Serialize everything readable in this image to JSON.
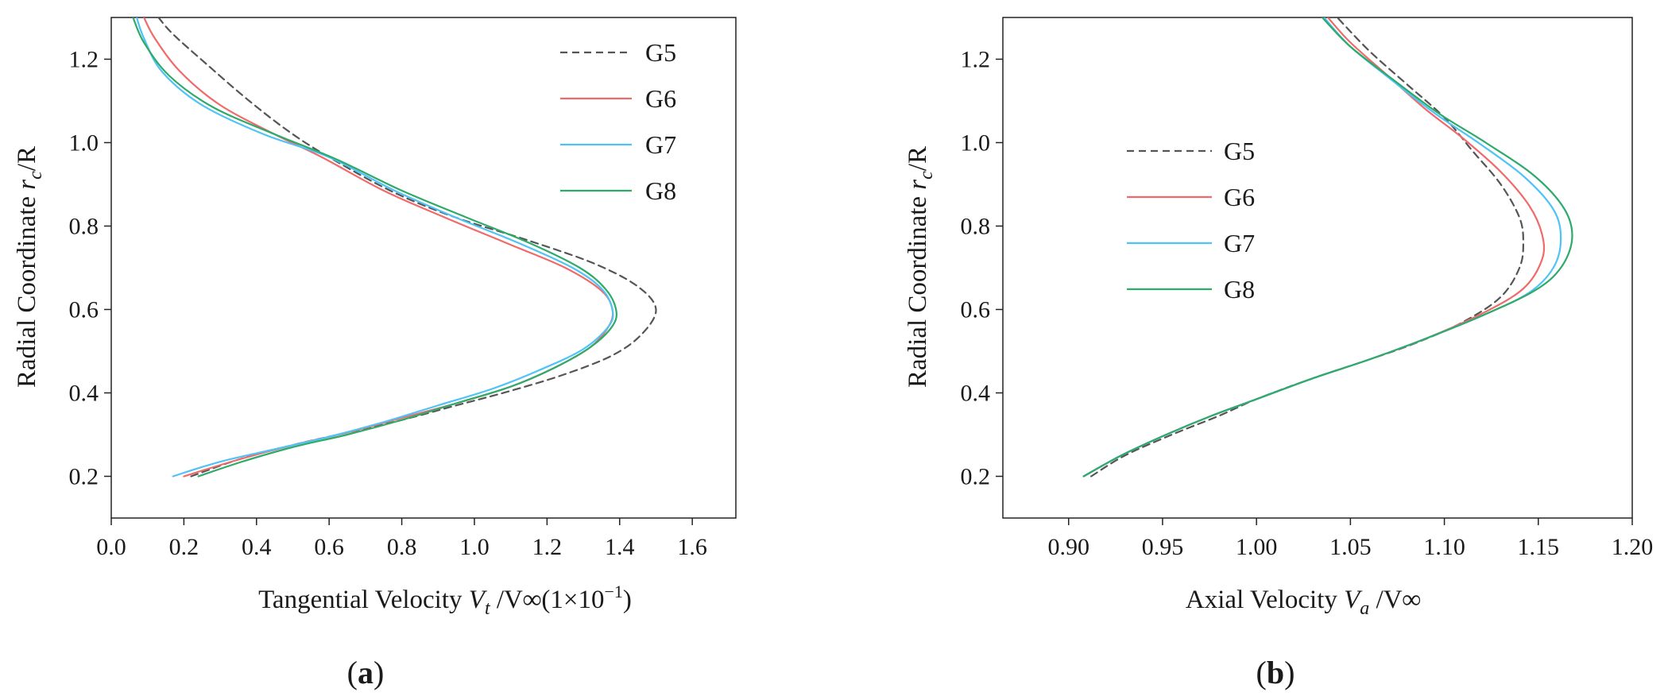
{
  "figure": {
    "panel_labels": [
      "(a)",
      "(b)"
    ]
  },
  "chart_data": [
    {
      "type": "line",
      "panel": "(a)",
      "xlabel": "Tangential Velocity V_t /V_∞(1×10⁻¹)",
      "xlabel_parts": {
        "prefix": "Tangential Velocity ",
        "v": "V",
        "sub": "t",
        "mid": " /V",
        "inf": "∞",
        "suffix": "(1×10",
        "sup": "−1",
        "close": ")"
      },
      "ylabel": "Radial Coordinate r_c/R",
      "ylabel_parts": {
        "prefix": "Radial Coordinate ",
        "r": "r",
        "sub": "c",
        "suffix": "/R"
      },
      "xlim": [
        0.0,
        1.72
      ],
      "ylim": [
        0.1,
        1.3
      ],
      "xticks": [
        0.0,
        0.2,
        0.4,
        0.6,
        0.8,
        1.0,
        1.2,
        1.4,
        1.6
      ],
      "xtick_labels": [
        "0.0",
        "0.2",
        "0.4",
        "0.6",
        "0.8",
        "1.0",
        "1.2",
        "1.4",
        "1.6"
      ],
      "yticks": [
        0.2,
        0.4,
        0.6,
        0.8,
        1.0,
        1.2
      ],
      "ytick_labels": [
        "0.2",
        "0.4",
        "0.6",
        "0.8",
        "1.0",
        "1.2"
      ],
      "legend_position": "top-right",
      "series": [
        {
          "name": "G5",
          "color": "#555555",
          "dash": "dashed",
          "points": [
            [
              0.22,
              0.2
            ],
            [
              0.35,
              0.24
            ],
            [
              0.5,
              0.275
            ],
            [
              0.65,
              0.305
            ],
            [
              0.8,
              0.335
            ],
            [
              0.95,
              0.37
            ],
            [
              1.1,
              0.405
            ],
            [
              1.25,
              0.445
            ],
            [
              1.38,
              0.49
            ],
            [
              1.46,
              0.54
            ],
            [
              1.5,
              0.6
            ],
            [
              1.45,
              0.655
            ],
            [
              1.33,
              0.71
            ],
            [
              1.15,
              0.765
            ],
            [
              0.95,
              0.82
            ],
            [
              0.78,
              0.88
            ],
            [
              0.62,
              0.955
            ],
            [
              0.5,
              1.02
            ],
            [
              0.38,
              1.1
            ],
            [
              0.26,
              1.19
            ],
            [
              0.17,
              1.26
            ],
            [
              0.13,
              1.3
            ]
          ]
        },
        {
          "name": "G6",
          "color": "#f06a6a",
          "dash": "solid",
          "points": [
            [
              0.2,
              0.2
            ],
            [
              0.35,
              0.24
            ],
            [
              0.5,
              0.275
            ],
            [
              0.65,
              0.305
            ],
            [
              0.8,
              0.34
            ],
            [
              0.95,
              0.375
            ],
            [
              1.1,
              0.415
            ],
            [
              1.22,
              0.46
            ],
            [
              1.32,
              0.51
            ],
            [
              1.37,
              0.56
            ],
            [
              1.38,
              0.6
            ],
            [
              1.35,
              0.645
            ],
            [
              1.25,
              0.7
            ],
            [
              1.1,
              0.755
            ],
            [
              0.92,
              0.82
            ],
            [
              0.75,
              0.885
            ],
            [
              0.58,
              0.965
            ],
            [
              0.45,
              1.02
            ],
            [
              0.3,
              1.09
            ],
            [
              0.19,
              1.17
            ],
            [
              0.12,
              1.25
            ],
            [
              0.09,
              1.3
            ]
          ]
        },
        {
          "name": "G7",
          "color": "#4fc3f7",
          "dash": "solid",
          "points": [
            [
              0.17,
              0.2
            ],
            [
              0.3,
              0.235
            ],
            [
              0.45,
              0.265
            ],
            [
              0.6,
              0.295
            ],
            [
              0.75,
              0.33
            ],
            [
              0.9,
              0.37
            ],
            [
              1.05,
              0.41
            ],
            [
              1.18,
              0.455
            ],
            [
              1.3,
              0.505
            ],
            [
              1.37,
              0.56
            ],
            [
              1.38,
              0.6
            ],
            [
              1.35,
              0.65
            ],
            [
              1.27,
              0.7
            ],
            [
              1.12,
              0.76
            ],
            [
              0.95,
              0.82
            ],
            [
              0.78,
              0.885
            ],
            [
              0.6,
              0.965
            ],
            [
              0.42,
              1.02
            ],
            [
              0.25,
              1.09
            ],
            [
              0.14,
              1.17
            ],
            [
              0.09,
              1.25
            ],
            [
              0.07,
              1.3
            ]
          ]
        },
        {
          "name": "G8",
          "color": "#2eaa6a",
          "dash": "solid",
          "points": [
            [
              0.24,
              0.2
            ],
            [
              0.36,
              0.235
            ],
            [
              0.5,
              0.27
            ],
            [
              0.65,
              0.3
            ],
            [
              0.8,
              0.335
            ],
            [
              0.95,
              0.375
            ],
            [
              1.1,
              0.415
            ],
            [
              1.22,
              0.46
            ],
            [
              1.32,
              0.51
            ],
            [
              1.38,
              0.56
            ],
            [
              1.39,
              0.6
            ],
            [
              1.36,
              0.65
            ],
            [
              1.29,
              0.7
            ],
            [
              1.15,
              0.76
            ],
            [
              0.98,
              0.82
            ],
            [
              0.8,
              0.885
            ],
            [
              0.62,
              0.96
            ],
            [
              0.45,
              1.02
            ],
            [
              0.28,
              1.085
            ],
            [
              0.16,
              1.16
            ],
            [
              0.09,
              1.24
            ],
            [
              0.06,
              1.3
            ]
          ]
        }
      ]
    },
    {
      "type": "line",
      "panel": "(b)",
      "xlabel": "Axial Velocity V_a /V_∞",
      "xlabel_parts": {
        "prefix": "Axial Velocity ",
        "v": "V",
        "sub": "a",
        "mid": " /V",
        "inf": "∞"
      },
      "ylabel": "Radial Coordinate r_c/R",
      "ylabel_parts": {
        "prefix": "Radial Coordinate ",
        "r": "r",
        "sub": "c",
        "suffix": "/R"
      },
      "xlim": [
        0.865,
        1.2
      ],
      "ylim": [
        0.1,
        1.3
      ],
      "xticks": [
        0.9,
        0.95,
        1.0,
        1.05,
        1.1,
        1.15,
        1.2
      ],
      "xtick_labels": [
        "0.90",
        "0.95",
        "1.00",
        "1.05",
        "1.10",
        "1.15",
        "1.20"
      ],
      "yticks": [
        0.2,
        0.4,
        0.6,
        0.8,
        1.0,
        1.2
      ],
      "ytick_labels": [
        "0.2",
        "0.4",
        "0.6",
        "0.8",
        "1.0",
        "1.2"
      ],
      "legend_position": "center-left",
      "series": [
        {
          "name": "G5",
          "color": "#555555",
          "dash": "dashed",
          "points": [
            [
              0.912,
              0.2
            ],
            [
              0.93,
              0.25
            ],
            [
              0.955,
              0.3
            ],
            [
              0.98,
              0.345
            ],
            [
              1.0,
              0.385
            ],
            [
              1.03,
              0.435
            ],
            [
              1.06,
              0.48
            ],
            [
              1.085,
              0.52
            ],
            [
              1.11,
              0.57
            ],
            [
              1.13,
              0.63
            ],
            [
              1.14,
              0.7
            ],
            [
              1.142,
              0.76
            ],
            [
              1.14,
              0.82
            ],
            [
              1.13,
              0.9
            ],
            [
              1.115,
              0.98
            ],
            [
              1.1,
              1.06
            ],
            [
              1.08,
              1.14
            ],
            [
              1.06,
              1.22
            ],
            [
              1.043,
              1.3
            ]
          ]
        },
        {
          "name": "G6",
          "color": "#f06a6a",
          "dash": "solid",
          "points": [
            [
              0.908,
              0.2
            ],
            [
              0.928,
              0.25
            ],
            [
              0.952,
              0.3
            ],
            [
              0.976,
              0.345
            ],
            [
              1.0,
              0.385
            ],
            [
              1.03,
              0.435
            ],
            [
              1.06,
              0.48
            ],
            [
              1.09,
              0.53
            ],
            [
              1.12,
              0.59
            ],
            [
              1.142,
              0.65
            ],
            [
              1.152,
              0.72
            ],
            [
              1.152,
              0.78
            ],
            [
              1.145,
              0.85
            ],
            [
              1.13,
              0.93
            ],
            [
              1.11,
              1.01
            ],
            [
              1.09,
              1.08
            ],
            [
              1.07,
              1.16
            ],
            [
              1.05,
              1.24
            ],
            [
              1.038,
              1.3
            ]
          ]
        },
        {
          "name": "G7",
          "color": "#4fc3f7",
          "dash": "solid",
          "points": [
            [
              0.908,
              0.2
            ],
            [
              0.928,
              0.25
            ],
            [
              0.952,
              0.3
            ],
            [
              0.976,
              0.345
            ],
            [
              1.0,
              0.385
            ],
            [
              1.03,
              0.435
            ],
            [
              1.06,
              0.48
            ],
            [
              1.09,
              0.53
            ],
            [
              1.12,
              0.585
            ],
            [
              1.145,
              0.64
            ],
            [
              1.158,
              0.7
            ],
            [
              1.162,
              0.77
            ],
            [
              1.158,
              0.84
            ],
            [
              1.142,
              0.92
            ],
            [
              1.118,
              1.0
            ],
            [
              1.095,
              1.07
            ],
            [
              1.072,
              1.15
            ],
            [
              1.05,
              1.23
            ],
            [
              1.036,
              1.3
            ]
          ]
        },
        {
          "name": "G8",
          "color": "#2eaa6a",
          "dash": "solid",
          "points": [
            [
              0.908,
              0.2
            ],
            [
              0.928,
              0.25
            ],
            [
              0.952,
              0.3
            ],
            [
              0.976,
              0.345
            ],
            [
              1.0,
              0.385
            ],
            [
              1.03,
              0.435
            ],
            [
              1.06,
              0.48
            ],
            [
              1.09,
              0.53
            ],
            [
              1.12,
              0.585
            ],
            [
              1.148,
              0.645
            ],
            [
              1.162,
              0.7
            ],
            [
              1.168,
              0.77
            ],
            [
              1.164,
              0.84
            ],
            [
              1.148,
              0.92
            ],
            [
              1.122,
              1.0
            ],
            [
              1.097,
              1.07
            ],
            [
              1.073,
              1.15
            ],
            [
              1.05,
              1.23
            ],
            [
              1.035,
              1.3
            ]
          ]
        }
      ]
    }
  ]
}
